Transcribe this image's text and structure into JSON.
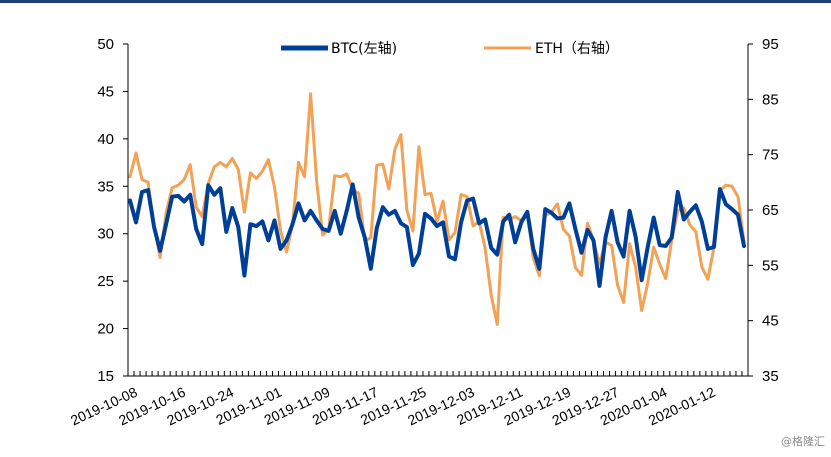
{
  "chart_data": {
    "type": "line",
    "title": "",
    "xlabel": "",
    "ylabel_left": "",
    "ylabel_right": "",
    "ylim_left": [
      15,
      50
    ],
    "ylim_right": [
      35,
      95
    ],
    "yticks_left": [
      "15",
      "20",
      "25",
      "30",
      "35",
      "40",
      "45",
      "50"
    ],
    "yticks_right": [
      "35",
      "45",
      "55",
      "65",
      "75",
      "85",
      "95"
    ],
    "x_tick_labels": [
      "2019-10-08",
      "2019-10-16",
      "2019-10-24",
      "2019-11-01",
      "2019-11-09",
      "2019-11-17",
      "2019-11-25",
      "2019-12-03",
      "2019-12-11",
      "2019-12-19",
      "2019-12-27",
      "2020-01-04",
      "2020-01-12"
    ],
    "start_date": "2019-10-08",
    "legend_position": "top-center",
    "series": [
      {
        "name": "BTC(左轴)",
        "axis": "left",
        "color": "#003f98",
        "values": [
          33.5,
          31.2,
          34.4,
          34.6,
          30.7,
          28.2,
          31.0,
          33.9,
          34.0,
          33.4,
          34.1,
          30.5,
          28.9,
          35.1,
          34.1,
          34.8,
          30.2,
          32.7,
          30.7,
          25.6,
          31.0,
          30.8,
          31.3,
          29.3,
          31.4,
          28.4,
          29.3,
          31.0,
          33.2,
          31.4,
          32.4,
          31.4,
          30.5,
          30.3,
          32.4,
          30.0,
          32.4,
          35.2,
          31.7,
          29.6,
          26.3,
          30.6,
          32.8,
          32.0,
          32.4,
          31.1,
          30.7,
          26.7,
          27.9,
          32.1,
          31.6,
          30.8,
          31.2,
          27.6,
          27.3,
          31.2,
          33.5,
          33.7,
          31.1,
          31.5,
          28.5,
          27.8,
          31.3,
          32.0,
          29.1,
          31.2,
          32.3,
          28.4,
          26.3,
          32.6,
          32.2,
          31.6,
          31.7,
          33.2,
          30.5,
          28.0,
          30.4,
          29.3,
          24.5,
          29.6,
          32.4,
          29.1,
          27.6,
          32.4,
          29.7,
          25.1,
          28.6,
          31.7,
          28.8,
          28.7,
          29.6,
          34.4,
          31.5,
          32.3,
          33.0,
          31.3,
          28.4,
          28.6,
          34.7,
          33.1,
          32.6,
          32.0,
          28.7
        ]
      },
      {
        "name": "ETH（右轴）",
        "axis": "right",
        "color": "#f2a155",
        "values": [
          71.0,
          75.3,
          70.5,
          70.0,
          62.0,
          56.4,
          64.5,
          69.0,
          69.5,
          70.5,
          73.2,
          65.5,
          63.8,
          69.8,
          72.8,
          73.6,
          72.8,
          74.3,
          72.3,
          64.6,
          71.7,
          70.7,
          72.0,
          74.1,
          69.1,
          61.3,
          57.4,
          62.3,
          73.6,
          71.0,
          86.0,
          70.3,
          60.5,
          61.5,
          71.2,
          71.0,
          71.5,
          68.7,
          68.0,
          59.4,
          60.0,
          73.1,
          73.3,
          68.8,
          76.0,
          78.6,
          64.9,
          61.2,
          76.4,
          67.8,
          68.0,
          62.9,
          66.6,
          59.6,
          60.9,
          67.8,
          67.4,
          62.1,
          63.0,
          58.1,
          49.6,
          44.3,
          63.7,
          63.2,
          63.8,
          63.1,
          64.4,
          56.4,
          53.1,
          64.0,
          64.6,
          66.1,
          61.5,
          60.3,
          54.6,
          53.2,
          62.6,
          59.5,
          55.2,
          59.2,
          58.6,
          51.4,
          48.3,
          58.9,
          54.7,
          46.8,
          51.8,
          58.3,
          55.2,
          52.6,
          59.5,
          64.9,
          65.4,
          62.3,
          61.1,
          54.7,
          52.5,
          58.2,
          68.5,
          69.5,
          69.3,
          67.4,
          59.2
        ]
      }
    ]
  },
  "watermark": "@格隆汇"
}
